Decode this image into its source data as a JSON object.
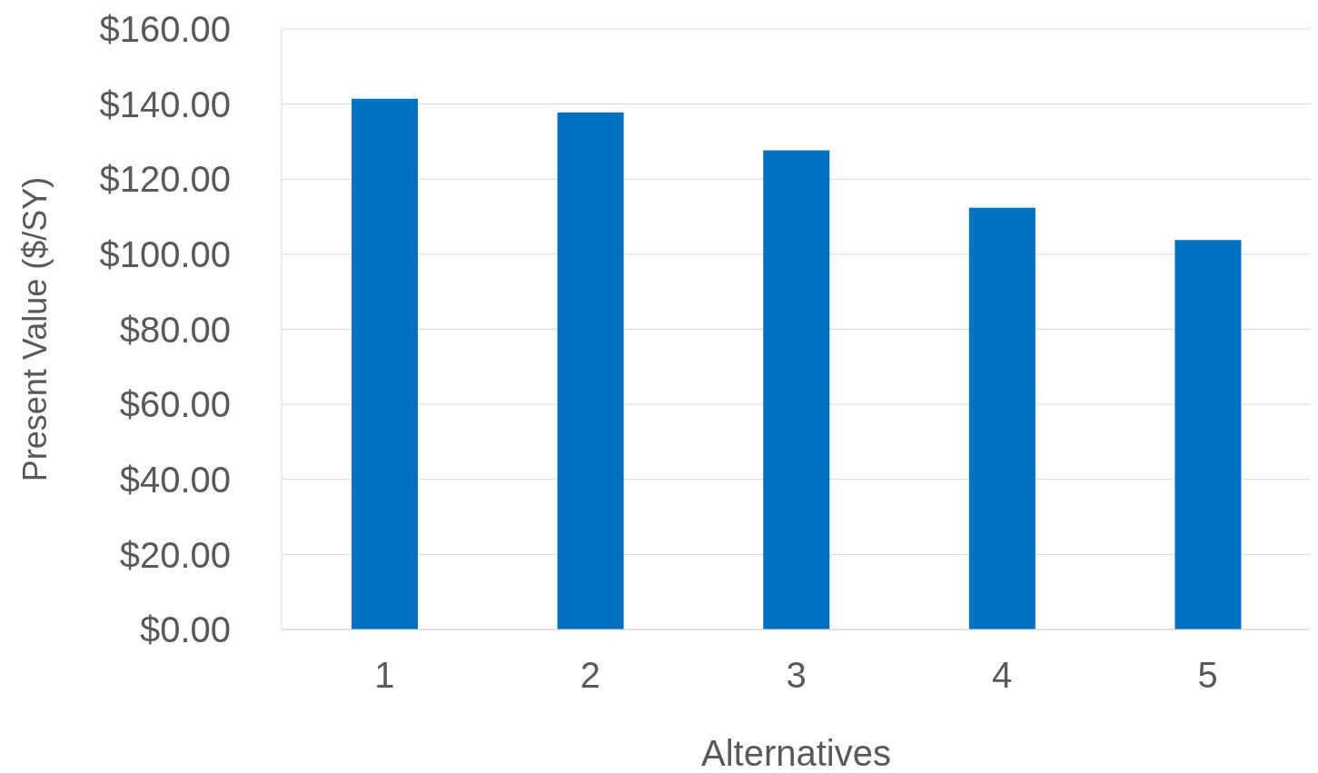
{
  "chart_data": {
    "type": "bar",
    "xlabel": "Alternatives",
    "ylabel": "Present Value ($/SY)",
    "categories": [
      "1",
      "2",
      "3",
      "4",
      "5"
    ],
    "values": [
      141.4,
      137.8,
      127.7,
      112.4,
      103.8
    ],
    "color": "#0070c0",
    "ylim": [
      0,
      160
    ],
    "yticks": [
      {
        "value": 0,
        "label": "$0.00"
      },
      {
        "value": 20,
        "label": "$20.00"
      },
      {
        "value": 40,
        "label": "$40.00"
      },
      {
        "value": 60,
        "label": "$60.00"
      },
      {
        "value": 80,
        "label": "$80.00"
      },
      {
        "value": 100,
        "label": "$100.00"
      },
      {
        "value": 120,
        "label": "$120.00"
      },
      {
        "value": 140,
        "label": "$140.00"
      },
      {
        "value": 160,
        "label": "$160.00"
      }
    ],
    "grid": "y"
  }
}
